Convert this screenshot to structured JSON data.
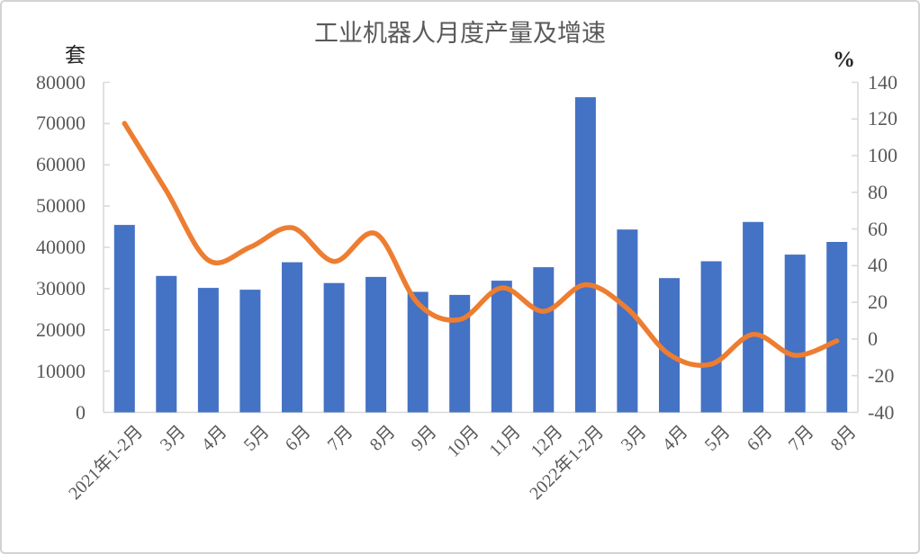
{
  "chart_data": {
    "type": "combo",
    "title": "工业机器人月度产量及增速",
    "grid": false,
    "legend": "none",
    "axis_color": "#d9d9d9",
    "tick_label_color": "#595959",
    "title_color": "#595959",
    "categories": [
      "2021年1-2月",
      "3月",
      "4月",
      "5月",
      "6月",
      "7月",
      "8月",
      "9月",
      "10月",
      "11月",
      "12月",
      "2022年1-2月",
      "3月",
      "4月",
      "5月",
      "6月",
      "7月",
      "8月"
    ],
    "series": [
      {
        "name": "产量",
        "type": "bar",
        "axis": "left",
        "color": "#4472C4",
        "values": [
          45433,
          33074,
          30178,
          29743,
          36383,
          31342,
          32828,
          29212,
          28460,
          31915,
          35175,
          76381,
          44306,
          32535,
          36616,
          46144,
          38242,
          41316
        ]
      },
      {
        "name": "增速",
        "type": "line",
        "axis": "right",
        "color": "#ED7D31",
        "values": [
          117.6,
          80.8,
          43.0,
          50.1,
          60.7,
          42.3,
          57.4,
          19.5,
          10.6,
          27.9,
          15.1,
          29.6,
          16.6,
          -8.4,
          -13.7,
          2.5,
          -8.9,
          -1.0
        ]
      }
    ],
    "left_axis": {
      "label": "套",
      "min": 0,
      "max": 80000,
      "ticks": [
        0,
        10000,
        20000,
        30000,
        40000,
        50000,
        60000,
        70000,
        80000
      ]
    },
    "right_axis": {
      "label": "%",
      "min": -40,
      "max": 140,
      "ticks": [
        -40,
        -20,
        0,
        20,
        40,
        60,
        80,
        100,
        120,
        140
      ]
    }
  }
}
